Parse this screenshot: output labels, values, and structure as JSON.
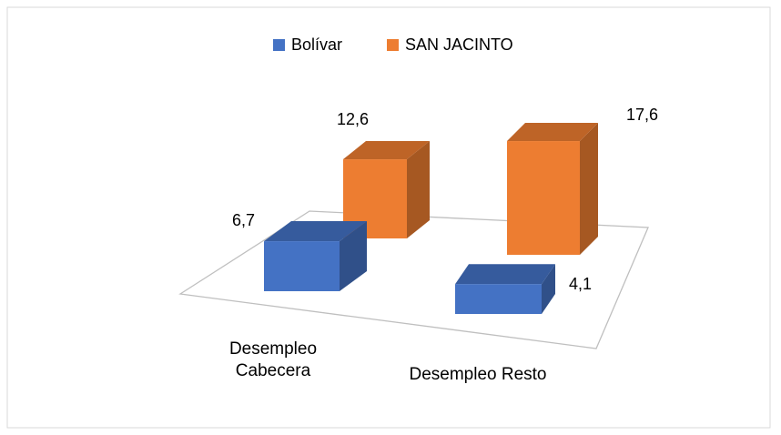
{
  "chart_data": {
    "type": "bar3d",
    "categories": [
      "Desempleo Cabecera",
      "Desempleo Resto"
    ],
    "series": [
      {
        "name": "Bolívar",
        "color": "#4472c4",
        "values": [
          6.7,
          4.1
        ],
        "value_labels": [
          "6,7",
          "4,1"
        ]
      },
      {
        "name": "SAN JACINTO",
        "color": "#ed7d31",
        "values": [
          12.6,
          17.6
        ],
        "value_labels": [
          "12,6",
          "17,6"
        ]
      }
    ],
    "legend": "top"
  }
}
